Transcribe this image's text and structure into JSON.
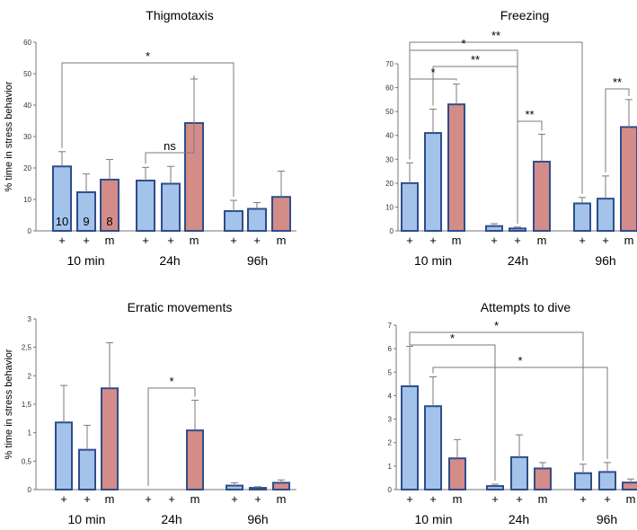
{
  "ylabel": "% time in stress behavior",
  "colors": {
    "blue": "#a4c3ea",
    "red": "#d48c88",
    "edge": "#2f4d8a",
    "axis": "#777777",
    "err": "#7a7a7a"
  },
  "group_labels": [
    "10 min",
    "24h",
    "96h"
  ],
  "bar_labels": [
    "+",
    "+",
    "m"
  ],
  "chart_data": [
    {
      "type": "bar",
      "title": "Thigmotaxis",
      "ylim": [
        0,
        60
      ],
      "yticks": [
        "0",
        "10",
        "20",
        "30",
        "40",
        "50",
        "60"
      ],
      "values": [
        [
          20.5,
          12.3,
          16.3
        ],
        [
          16.0,
          15.0,
          34.3
        ],
        [
          6.3,
          7.0,
          10.8
        ]
      ],
      "errors": [
        [
          4.7,
          5.8,
          6.4
        ],
        [
          4.2,
          5.5,
          14.0
        ],
        [
          3.4,
          2.0,
          8.2
        ]
      ],
      "bar_annotations": [
        [
          [
            "10"
          ],
          [
            "9"
          ],
          [
            "8"
          ]
        ]
      ],
      "significance": [
        {
          "label": "*",
          "from": [
            0,
            0
          ],
          "to": [
            2,
            0
          ]
        },
        {
          "label": "ns",
          "from": [
            1,
            0
          ],
          "to": [
            1,
            2
          ]
        }
      ]
    },
    {
      "type": "bar",
      "title": "Freezing",
      "ylim": [
        0,
        70
      ],
      "yticks": [
        "0",
        "10",
        "20",
        "30",
        "40",
        "50",
        "60",
        "70"
      ],
      "values": [
        [
          20.0,
          41.0,
          53.0
        ],
        [
          2.0,
          1.0,
          29.0
        ],
        [
          11.5,
          13.5,
          43.5
        ]
      ],
      "errors": [
        [
          8.5,
          10.0,
          8.5
        ],
        [
          1.0,
          0.6,
          11.5
        ],
        [
          2.5,
          9.5,
          11.5
        ]
      ],
      "significance": [
        {
          "label": "**",
          "from": [
            0,
            0
          ],
          "to": [
            2,
            0
          ]
        },
        {
          "label": "*",
          "from": [
            0,
            0
          ],
          "to": [
            1,
            1
          ]
        },
        {
          "label": "**",
          "from": [
            0,
            1
          ],
          "to": [
            1,
            1
          ]
        },
        {
          "label": "*",
          "from": [
            0,
            0
          ],
          "to": [
            0,
            2
          ]
        },
        {
          "label": "**",
          "from": [
            1,
            1
          ],
          "to": [
            1,
            2
          ]
        },
        {
          "label": "**",
          "from": [
            2,
            1
          ],
          "to": [
            2,
            2
          ]
        }
      ]
    },
    {
      "type": "bar",
      "title": "Erratic movements",
      "ylim": [
        0,
        3
      ],
      "yticks": [
        "0",
        "0,5",
        "1",
        "1,5",
        "2",
        "2,5",
        "3"
      ],
      "values": [
        [
          1.18,
          0.7,
          1.78
        ],
        [
          0,
          0,
          1.04
        ],
        [
          0.07,
          0.03,
          0.12
        ]
      ],
      "errors": [
        [
          0.65,
          0.43,
          0.8
        ],
        [
          0,
          0,
          0.53
        ],
        [
          0.05,
          0.02,
          0.05
        ]
      ],
      "significance": [
        {
          "label": "*",
          "from": [
            1,
            0
          ],
          "to": [
            1,
            2
          ]
        }
      ]
    },
    {
      "type": "bar",
      "title": "Attempts to dive",
      "ylim": [
        0,
        7
      ],
      "yticks": [
        "0",
        "1",
        "2",
        "3",
        "4",
        "5",
        "6",
        "7"
      ],
      "values": [
        [
          4.4,
          3.55,
          1.33
        ],
        [
          0.15,
          1.38,
          0.9
        ],
        [
          0.7,
          0.75,
          0.3
        ]
      ],
      "errors": [
        [
          1.7,
          1.25,
          0.8
        ],
        [
          0.08,
          0.95,
          0.25
        ],
        [
          0.38,
          0.4,
          0.15
        ]
      ],
      "significance": [
        {
          "label": "*",
          "from": [
            0,
            0
          ],
          "to": [
            1,
            0
          ]
        },
        {
          "label": "*",
          "from": [
            0,
            0
          ],
          "to": [
            2,
            0
          ]
        },
        {
          "label": "*",
          "from": [
            0,
            1
          ],
          "to": [
            2,
            1
          ]
        }
      ]
    }
  ]
}
